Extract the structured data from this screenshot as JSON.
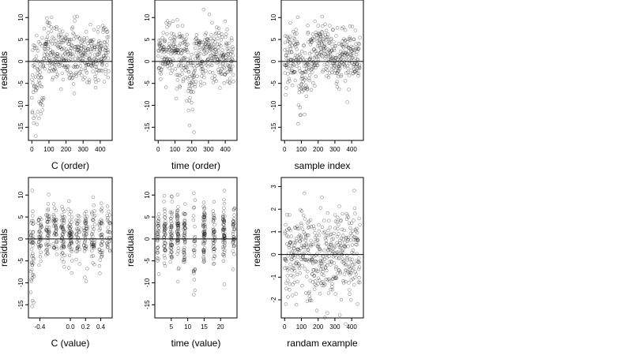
{
  "chart_data": [
    {
      "type": "scatter",
      "xlabel": "C (order)",
      "ylabel": "residuals",
      "xlim": [
        -20,
        470
      ],
      "ylim": [
        -18,
        14
      ],
      "xticks": [
        0,
        100,
        200,
        300,
        400
      ],
      "yticks": [
        -15,
        -10,
        -5,
        0,
        5,
        10
      ],
      "hline": 0,
      "n_points": 450,
      "x_kind": "index",
      "pattern": "orderC"
    },
    {
      "type": "scatter",
      "xlabel": "time (order)",
      "ylabel": "residuals",
      "xlim": [
        -20,
        470
      ],
      "ylim": [
        -18,
        14
      ],
      "xticks": [
        0,
        100,
        200,
        300,
        400
      ],
      "yticks": [
        -15,
        -10,
        -5,
        0,
        5,
        10
      ],
      "hline": 0,
      "n_points": 450,
      "x_kind": "index",
      "pattern": "orderTime"
    },
    {
      "type": "scatter",
      "xlabel": "sample index",
      "ylabel": "residuals",
      "xlim": [
        -20,
        470
      ],
      "ylim": [
        -18,
        14
      ],
      "xticks": [
        0,
        100,
        200,
        300,
        400
      ],
      "yticks": [
        -15,
        -10,
        -5,
        0,
        5,
        10
      ],
      "hline": 0,
      "n_points": 450,
      "x_kind": "index",
      "pattern": "sample"
    },
    {
      "type": "scatter",
      "xlabel": "C (value)",
      "ylabel": "residuals",
      "xlim": [
        -0.55,
        0.55
      ],
      "ylim": [
        -18,
        14
      ],
      "xticks": [
        -0.4,
        0.0,
        0.2,
        0.4
      ],
      "xticklabels": [
        "-0.4",
        "0.0",
        "0.2",
        "0.4"
      ],
      "yticks": [
        -15,
        -10,
        -5,
        0,
        5,
        10
      ],
      "hline": 0,
      "n_points": 450,
      "x_kind": "discrete",
      "x_levels": [
        -0.5,
        -0.4,
        -0.3,
        -0.2,
        -0.1,
        0.0,
        0.1,
        0.2,
        0.3,
        0.4,
        0.5
      ],
      "pattern": "valueC"
    },
    {
      "type": "scatter",
      "xlabel": "time (value)",
      "ylabel": "residuals",
      "xlim": [
        0,
        25
      ],
      "ylim": [
        -18,
        14
      ],
      "xticks": [
        5,
        10,
        15,
        20
      ],
      "yticks": [
        -15,
        -10,
        -5,
        0,
        5,
        10
      ],
      "hline": 0,
      "n_points": 450,
      "x_kind": "discrete",
      "x_levels": [
        1,
        3,
        5,
        7,
        9,
        12,
        15,
        18,
        21,
        24
      ],
      "pattern": "valueTime"
    },
    {
      "type": "scatter",
      "xlabel": "randam example",
      "ylabel": "residuals",
      "xlim": [
        -20,
        470
      ],
      "ylim": [
        -2.8,
        3.4
      ],
      "xticks": [
        0,
        100,
        200,
        300,
        400
      ],
      "yticks": [
        -2,
        -1,
        0,
        1,
        2,
        3
      ],
      "hline": 0,
      "n_points": 450,
      "x_kind": "index",
      "pattern": "random"
    }
  ],
  "style": {
    "point_color": "#000000",
    "point_opacity": 0.45,
    "line_color": "#000000",
    "background": "#ffffff"
  }
}
